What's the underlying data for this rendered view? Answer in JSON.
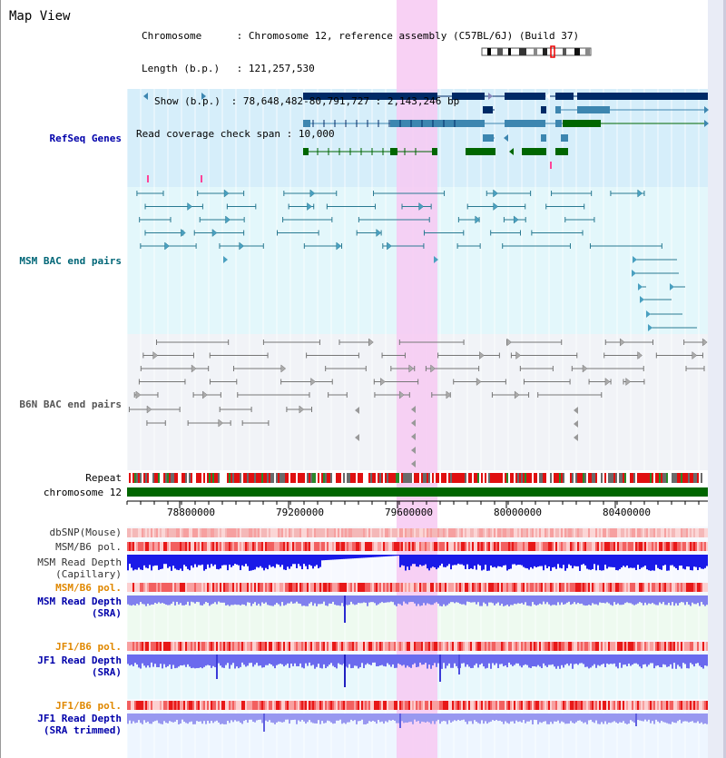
{
  "page_title": "Map View",
  "info": {
    "chromosome_label": "Chromosome",
    "chromosome_value": "Chromosome 12, reference assembly (C57BL/6J) (Build 37)",
    "length_label": "Length (b.p.)",
    "length_value": "121,257,530",
    "show_label": "Show (b.p.)",
    "show_value": "78,648,482-80,791,727 : 2,143,246 bp",
    "coverage_label": "Read coverage check span",
    "coverage_value": "10,000"
  },
  "tracks": {
    "refseq": "RefSeq Genes",
    "msm_bac": "MSM BAC end pairs",
    "b6n_bac": "B6N BAC end pairs",
    "repeat": "Repeat",
    "chromosome": "chromosome 12",
    "dbsnp": "dbSNP(Mouse)",
    "msm_b6_pol_1": "MSM/B6 pol.",
    "msm_depth_cap_1": "MSM Read Depth",
    "msm_depth_cap_2": "(Capillary)",
    "msm_b6_pol_2": "MSM/B6 pol.",
    "msm_depth_sra_1": "MSM Read Depth",
    "msm_depth_sra_2": "(SRA)",
    "jf1_b6_pol_1": "JF1/B6 pol.",
    "jf1_depth_sra_1": "JF1 Read Depth",
    "jf1_depth_sra_2": "(SRA)",
    "jf1_b6_pol_2": "JF1/B6 pol.",
    "jf1_depth_trim_1": "JF1 Read Depth",
    "jf1_depth_trim_2": "(SRA trimmed)"
  },
  "axis_ticks": [
    "78800000",
    "79200000",
    "79600000",
    "80000000",
    "80400000"
  ],
  "colors": {
    "highlight": "#f7c9f2",
    "refseq_bg": "#d6eefa",
    "msm_bg": "#e3f7fb",
    "b6n_bg": "#f1f3f7",
    "gene_dark": "#002a66",
    "gene_mid": "#3d86b0",
    "gene_green": "#006600",
    "chromosome_bar": "#006600",
    "depth_blue": "#2222ee",
    "depth_light": "#7777ee"
  }
}
